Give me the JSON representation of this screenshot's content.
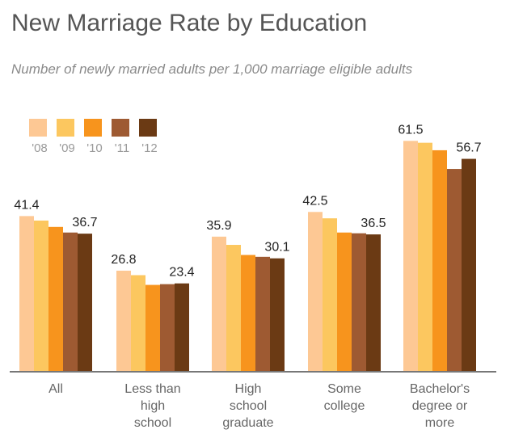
{
  "chart_data": {
    "type": "bar",
    "title": "New Marriage Rate by Education",
    "subtitle": "Number of newly married adults per 1,000 marriage eligible adults",
    "categories": [
      [
        "All"
      ],
      [
        "Less than",
        "high",
        "school"
      ],
      [
        "High",
        "school",
        "graduate"
      ],
      [
        "Some",
        "college"
      ],
      [
        "Bachelor's",
        "degree or",
        "more"
      ]
    ],
    "series": [
      {
        "name": "'08",
        "color": "#fdc894",
        "values": [
          41.4,
          26.8,
          35.9,
          42.5,
          61.5
        ]
      },
      {
        "name": "'09",
        "color": "#fcc75f",
        "values": [
          40.2,
          25.6,
          33.7,
          40.8,
          61.0
        ]
      },
      {
        "name": "'10",
        "color": "#f7941d",
        "values": [
          38.5,
          23.0,
          31.0,
          37.0,
          59.0
        ]
      },
      {
        "name": "'11",
        "color": "#9e5a32",
        "values": [
          37.0,
          23.2,
          30.5,
          36.8,
          54.0
        ]
      },
      {
        "name": "'12",
        "color": "#6b3a14",
        "values": [
          36.7,
          23.4,
          30.1,
          36.5,
          56.7
        ]
      }
    ],
    "data_labels": [
      {
        "category": 0,
        "series": 0,
        "text": "41.4"
      },
      {
        "category": 0,
        "series": 4,
        "text": "36.7"
      },
      {
        "category": 1,
        "series": 0,
        "text": "26.8"
      },
      {
        "category": 1,
        "series": 4,
        "text": "23.4"
      },
      {
        "category": 2,
        "series": 0,
        "text": "35.9"
      },
      {
        "category": 2,
        "series": 4,
        "text": "30.1"
      },
      {
        "category": 3,
        "series": 0,
        "text": "42.5"
      },
      {
        "category": 3,
        "series": 4,
        "text": "36.5"
      },
      {
        "category": 4,
        "series": 0,
        "text": "61.5"
      },
      {
        "category": 4,
        "series": 4,
        "text": "56.7"
      }
    ],
    "ylim": [
      0,
      70
    ],
    "grid": false,
    "legend_placement": "top-left",
    "axis_color": "#777777",
    "label_color": "#222222",
    "tick_label_color": "#666666"
  }
}
